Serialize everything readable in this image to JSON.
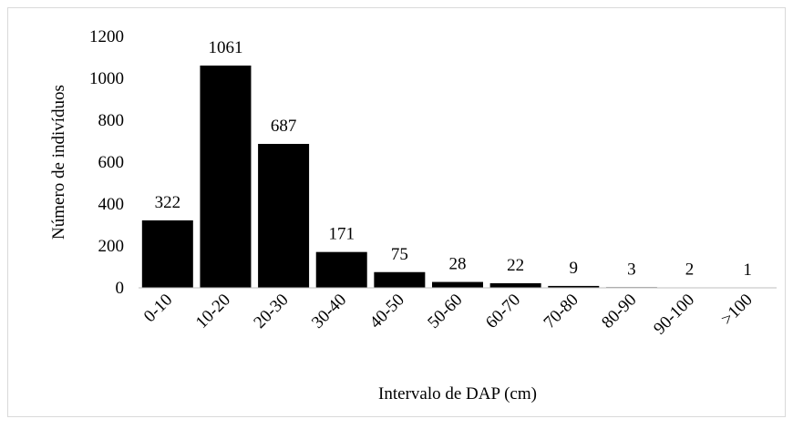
{
  "chart_data": {
    "type": "bar",
    "xlabel": "Intervalo de DAP (cm)",
    "ylabel": "Número de indivíduos",
    "categories": [
      "0-10",
      "10-20",
      "20-30",
      "30-40",
      "40-50",
      "50-60",
      "60-70",
      "70-80",
      "80-90",
      "90-100",
      ">100"
    ],
    "values": [
      322,
      1061,
      687,
      171,
      75,
      28,
      22,
      9,
      3,
      2,
      1
    ],
    "color": "#000000",
    "ylim": [
      0,
      1200
    ],
    "yticks": [
      0,
      200,
      400,
      600,
      800,
      1000,
      1200
    ],
    "grid": false
  }
}
